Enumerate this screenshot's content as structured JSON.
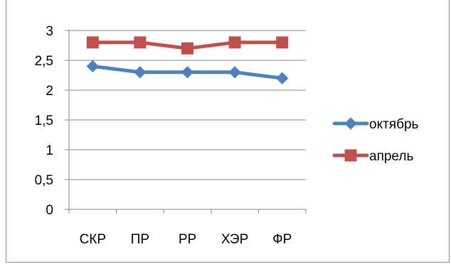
{
  "chart_data": {
    "type": "line",
    "categories": [
      "СКР",
      "ПР",
      "РР",
      "ХЭР",
      "ФР"
    ],
    "series": [
      {
        "name": "октябрь",
        "values": [
          2.4,
          2.3,
          2.3,
          2.3,
          2.2
        ],
        "color": "#4f81bd",
        "marker": "diamond"
      },
      {
        "name": "апрель",
        "values": [
          2.8,
          2.8,
          2.7,
          2.8,
          2.8
        ],
        "color": "#c0504d",
        "marker": "square"
      }
    ],
    "y_ticks": [
      "0",
      "0,5",
      "1",
      "1,5",
      "2",
      "2,5",
      "3"
    ],
    "ylim": [
      0,
      3
    ],
    "y_step": 0.5,
    "grid": true,
    "legend_position": "right"
  }
}
